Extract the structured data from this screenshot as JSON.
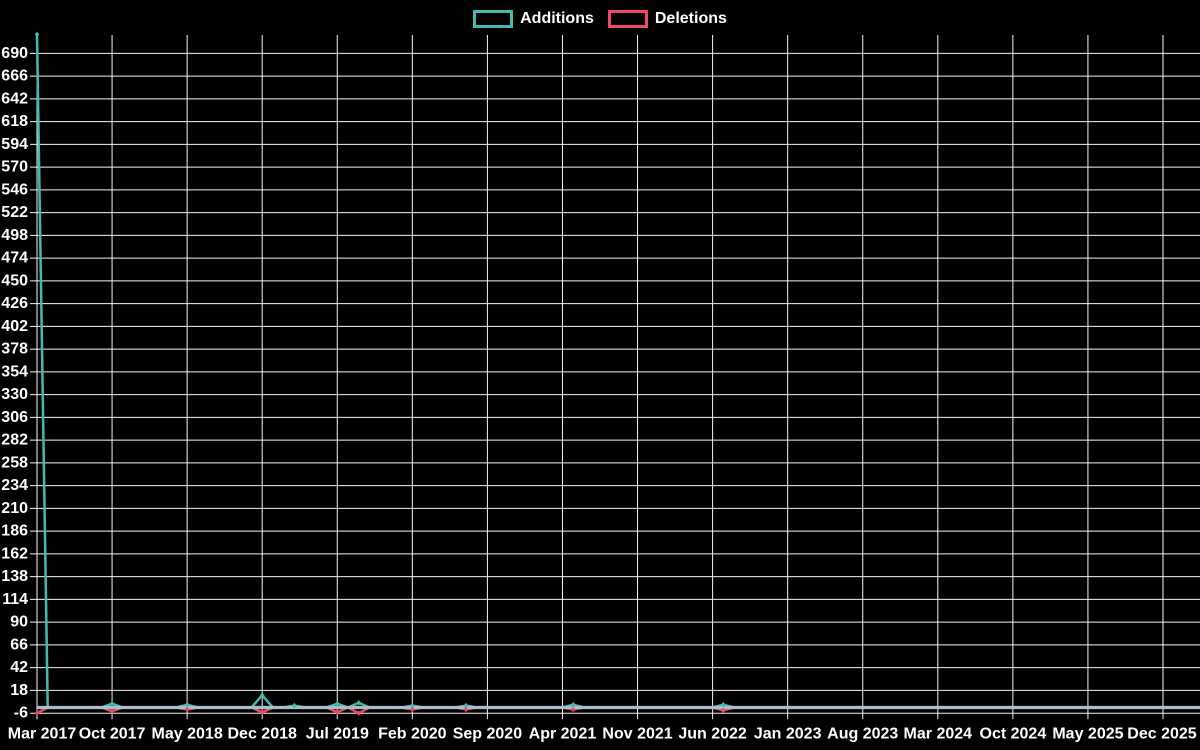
{
  "colors": {
    "background": "#000000",
    "grid": "#f5f5f5",
    "axis_text": "#ffffff",
    "additions": "#45b8b0",
    "deletions": "#ee4a68",
    "zero_line": "#a8bfc5"
  },
  "legend": {
    "additions_label": "Additions",
    "deletions_label": "Deletions"
  },
  "chart_data": {
    "type": "line",
    "title": "",
    "xlabel": "",
    "ylabel": "",
    "grid": true,
    "legend_position": "top-center",
    "x_start_month": "Mar 2017",
    "x_end_month": "Dec 2025",
    "n_months": 106,
    "months_per_x_tick": 7,
    "x_tick_labels": [
      "Mar 2017",
      "Oct 2017",
      "May 2018",
      "Dec 2018",
      "Jul 2019",
      "Feb 2020",
      "Sep 2020",
      "Apr 2021",
      "Nov 2021",
      "Jun 2022",
      "Jan 2023",
      "Aug 2023",
      "Mar 2024",
      "Oct 2024",
      "May 2025",
      "Dec 2025"
    ],
    "y_tick_labels": [
      690,
      666,
      642,
      618,
      594,
      570,
      546,
      522,
      498,
      474,
      450,
      426,
      402,
      378,
      354,
      330,
      306,
      282,
      258,
      234,
      210,
      186,
      162,
      138,
      114,
      90,
      66,
      42,
      18,
      -6
    ],
    "y_tick_step": 24,
    "ylim": [
      -6,
      714
    ],
    "series": [
      {
        "name": "Additions",
        "color": "#45b8b0",
        "default_value": 0,
        "marker": "diamond",
        "points": {
          "Mar 2017": 710,
          "Oct 2017": 4,
          "May 2018": 3,
          "Dec 2018": 13,
          "Mar 2019": 2,
          "Jul 2019": 4,
          "Sep 2019": 5,
          "Feb 2020": 2,
          "Jul 2020": 2,
          "May 2021": 3,
          "Jul 2022": 3
        }
      },
      {
        "name": "Deletions",
        "color": "#ee4a68",
        "default_value": 0,
        "marker": "diamond",
        "points": {
          "Mar 2017": -6,
          "Oct 2017": -4,
          "May 2018": -2,
          "Dec 2018": -5,
          "Jul 2019": -5,
          "Sep 2019": -6,
          "Feb 2020": -2,
          "Jul 2020": -2,
          "May 2021": -2,
          "Jul 2022": -3
        }
      }
    ]
  }
}
